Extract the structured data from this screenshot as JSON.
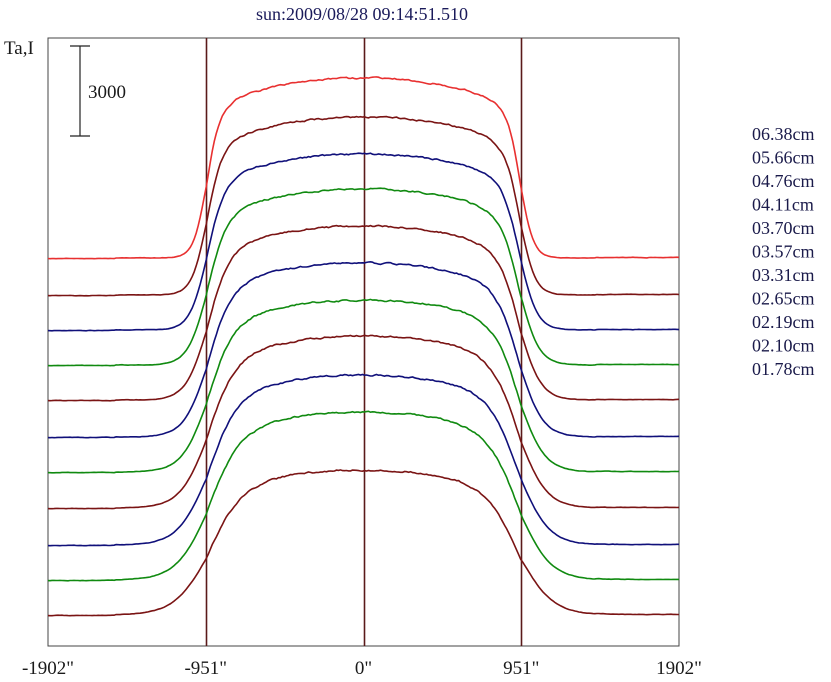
{
  "chart_data": {
    "type": "line",
    "title": "sun:2009/08/28 09:14:51.510",
    "ylabel": "Ta,I",
    "scale_bar_label": "3000",
    "scale_bar_value": 3000,
    "x_tick_labels": [
      "-1902\"",
      "-951\"",
      "0\"",
      "951\"",
      "1902\""
    ],
    "x_ticks": [
      -1902,
      -951,
      0,
      951,
      1902
    ],
    "xlim": [
      -1902,
      1902
    ],
    "vertical_lines": [
      -951,
      0,
      951
    ],
    "vertical_line_color": "#5a1a1a",
    "series": [
      {
        "name": "06.38cm",
        "color": "#e83030",
        "baseline": 258,
        "amp": 180,
        "idx": 0
      },
      {
        "name": "05.66cm",
        "color": "#7a1414",
        "baseline": 295,
        "amp": 178,
        "idx": 1
      },
      {
        "name": "04.76cm",
        "color": "#10107a",
        "baseline": 330,
        "amp": 176,
        "idx": 2
      },
      {
        "name": "04.11cm",
        "color": "#108a10",
        "baseline": 365,
        "amp": 176,
        "idx": 3
      },
      {
        "name": "03.70cm",
        "color": "#7a1414",
        "baseline": 400,
        "amp": 174,
        "idx": 4
      },
      {
        "name": "03.57cm",
        "color": "#10107a",
        "baseline": 437,
        "amp": 174,
        "idx": 5
      },
      {
        "name": "03.31cm",
        "color": "#108a10",
        "baseline": 472,
        "amp": 172,
        "idx": 6
      },
      {
        "name": "02.65cm",
        "color": "#7a1414",
        "baseline": 508,
        "amp": 172,
        "idx": 7
      },
      {
        "name": "02.19cm",
        "color": "#10107a",
        "baseline": 545,
        "amp": 170,
        "idx": 8
      },
      {
        "name": "02.10cm",
        "color": "#108a10",
        "baseline": 580,
        "amp": 168,
        "idx": 9
      },
      {
        "name": "01.78cm",
        "color": "#7a1414",
        "baseline": 615,
        "amp": 145,
        "idx": 10
      }
    ]
  }
}
